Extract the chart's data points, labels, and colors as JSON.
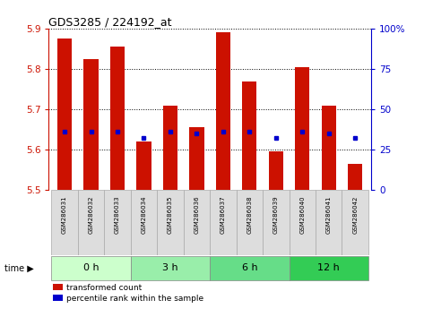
{
  "title": "GDS3285 / 224192_at",
  "samples": [
    "GSM286031",
    "GSM286032",
    "GSM286033",
    "GSM286034",
    "GSM286035",
    "GSM286036",
    "GSM286037",
    "GSM286038",
    "GSM286039",
    "GSM286040",
    "GSM286041",
    "GSM286042"
  ],
  "bar_tops": [
    5.875,
    5.825,
    5.855,
    5.62,
    5.71,
    5.655,
    5.89,
    5.77,
    5.595,
    5.805,
    5.71,
    5.565
  ],
  "blue_vals": [
    5.645,
    5.645,
    5.645,
    5.63,
    5.645,
    5.64,
    5.645,
    5.645,
    5.63,
    5.645,
    5.64,
    5.63
  ],
  "bar_bottom": 5.5,
  "ylim": [
    5.5,
    5.9
  ],
  "yticks": [
    5.5,
    5.6,
    5.7,
    5.8,
    5.9
  ],
  "bar_color": "#cc1100",
  "blue_color": "#0000cc",
  "groups": [
    {
      "label": "0 h",
      "start": 0,
      "end": 3,
      "color": "#ccffcc"
    },
    {
      "label": "3 h",
      "start": 3,
      "end": 6,
      "color": "#99eeaa"
    },
    {
      "label": "6 h",
      "start": 6,
      "end": 9,
      "color": "#66dd88"
    },
    {
      "label": "12 h",
      "start": 9,
      "end": 12,
      "color": "#33cc55"
    }
  ],
  "right_yticks": [
    0,
    25,
    50,
    75,
    100
  ],
  "right_ylim": [
    0,
    100
  ],
  "right_yticklabels": [
    "0",
    "25",
    "50",
    "75",
    "100%"
  ],
  "legend_red_label": "transformed count",
  "legend_blue_label": "percentile rank within the sample",
  "time_label": "time",
  "bar_width": 0.55,
  "bg_color": "#ffffff",
  "sample_box_color": "#dddddd",
  "sample_box_edge": "#aaaaaa"
}
